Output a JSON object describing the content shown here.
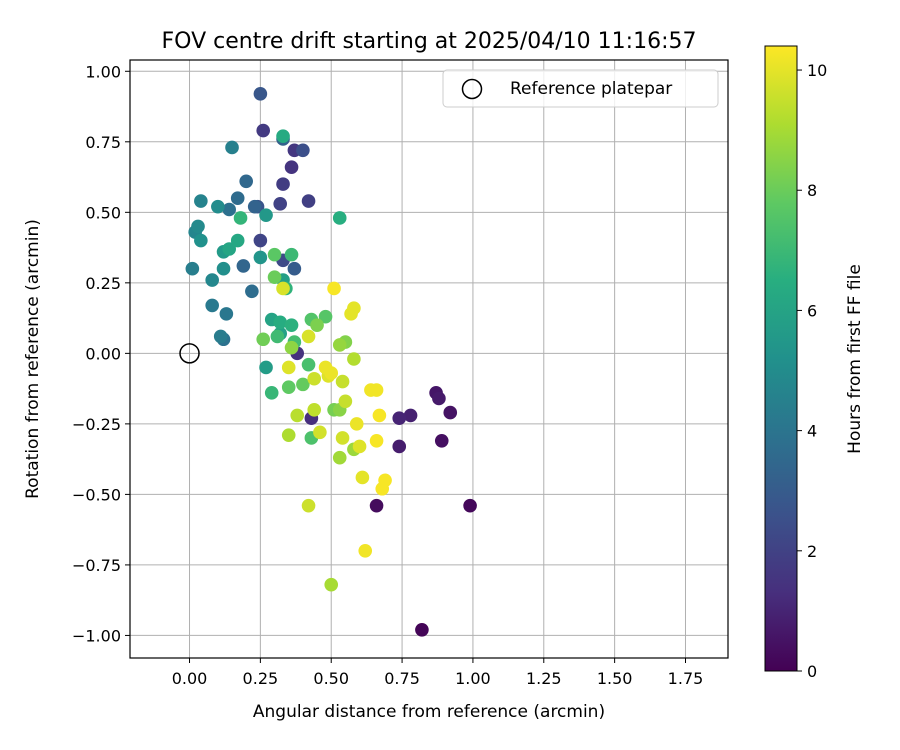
{
  "chart_data": {
    "type": "scatter",
    "title": "FOV centre drift starting at 2025/04/10 11:16:57",
    "xlabel": "Angular distance from reference (arcmin)",
    "ylabel": "Rotation from reference (arcmin)",
    "xlim": [
      -0.21,
      1.9
    ],
    "ylim": [
      -1.08,
      1.04
    ],
    "xticks": [
      "0.00",
      "0.25",
      "0.50",
      "0.75",
      "1.00",
      "1.25",
      "1.50",
      "1.75"
    ],
    "yticks": [
      "1.00",
      "0.75",
      "0.50",
      "0.25",
      "0.00",
      "−0.25",
      "−0.50",
      "−0.75",
      "−1.00"
    ],
    "grid": true,
    "legend": {
      "label": "Reference platepar",
      "placement": "top-right"
    },
    "reference_point": {
      "x": 0.0,
      "y": 0.0
    },
    "colorbar": {
      "label": "Hours from first FF file",
      "range": [
        0,
        10.4
      ],
      "ticks": [
        "0",
        "2",
        "4",
        "6",
        "8",
        "10"
      ],
      "colormap": "viridis"
    },
    "series": [
      {
        "points": [
          {
            "x": 0.82,
            "y": -0.98,
            "h": 0.1
          },
          {
            "x": 0.99,
            "y": -0.54,
            "h": 0.2
          },
          {
            "x": 0.66,
            "y": -0.54,
            "h": 0.3
          },
          {
            "x": 0.89,
            "y": -0.31,
            "h": 0.4
          },
          {
            "x": 0.92,
            "y": -0.21,
            "h": 0.5
          },
          {
            "x": 0.87,
            "y": -0.14,
            "h": 0.6
          },
          {
            "x": 0.88,
            "y": -0.16,
            "h": 0.7
          },
          {
            "x": 0.74,
            "y": -0.33,
            "h": 0.8
          },
          {
            "x": 0.78,
            "y": -0.22,
            "h": 0.9
          },
          {
            "x": 0.74,
            "y": -0.23,
            "h": 1.0
          },
          {
            "x": 0.43,
            "y": -0.23,
            "h": 1.3
          },
          {
            "x": 0.38,
            "y": 0.0,
            "h": 1.4
          },
          {
            "x": 0.36,
            "y": 0.66,
            "h": 1.5
          },
          {
            "x": 0.37,
            "y": 0.72,
            "h": 1.6
          },
          {
            "x": 0.26,
            "y": 0.79,
            "h": 1.7
          },
          {
            "x": 0.33,
            "y": 0.6,
            "h": 1.8
          },
          {
            "x": 0.42,
            "y": 0.54,
            "h": 1.9
          },
          {
            "x": 0.32,
            "y": 0.53,
            "h": 2.0
          },
          {
            "x": 0.25,
            "y": 0.4,
            "h": 2.1
          },
          {
            "x": 0.33,
            "y": 0.33,
            "h": 2.3
          },
          {
            "x": 0.4,
            "y": 0.72,
            "h": 2.5
          },
          {
            "x": 0.24,
            "y": 0.52,
            "h": 2.7
          },
          {
            "x": 0.25,
            "y": 0.92,
            "h": 2.8
          },
          {
            "x": 0.37,
            "y": 0.3,
            "h": 3.0
          },
          {
            "x": 0.33,
            "y": 0.76,
            "h": 3.2
          },
          {
            "x": 0.23,
            "y": 0.52,
            "h": 3.3
          },
          {
            "x": 0.19,
            "y": 0.31,
            "h": 3.4
          },
          {
            "x": 0.2,
            "y": 0.61,
            "h": 3.5
          },
          {
            "x": 0.17,
            "y": 0.55,
            "h": 3.6
          },
          {
            "x": 0.22,
            "y": 0.22,
            "h": 3.7
          },
          {
            "x": 0.14,
            "y": 0.51,
            "h": 3.8
          },
          {
            "x": 0.12,
            "y": 0.05,
            "h": 3.9
          },
          {
            "x": 0.13,
            "y": 0.14,
            "h": 4.1
          },
          {
            "x": 0.08,
            "y": 0.17,
            "h": 4.2
          },
          {
            "x": 0.11,
            "y": 0.06,
            "h": 4.3
          },
          {
            "x": 0.01,
            "y": 0.3,
            "h": 4.4
          },
          {
            "x": 0.15,
            "y": 0.73,
            "h": 4.5
          },
          {
            "x": 0.04,
            "y": 0.54,
            "h": 4.6
          },
          {
            "x": 0.02,
            "y": 0.43,
            "h": 4.7
          },
          {
            "x": 0.08,
            "y": 0.26,
            "h": 4.8
          },
          {
            "x": 0.03,
            "y": 0.45,
            "h": 4.9
          },
          {
            "x": 0.1,
            "y": 0.52,
            "h": 5.0
          },
          {
            "x": 0.12,
            "y": 0.3,
            "h": 5.1
          },
          {
            "x": 0.04,
            "y": 0.4,
            "h": 5.2
          },
          {
            "x": 0.25,
            "y": 0.34,
            "h": 5.4
          },
          {
            "x": 0.27,
            "y": 0.49,
            "h": 5.5
          },
          {
            "x": 0.12,
            "y": 0.36,
            "h": 5.6
          },
          {
            "x": 0.27,
            "y": -0.05,
            "h": 5.7
          },
          {
            "x": 0.33,
            "y": 0.26,
            "h": 5.8
          },
          {
            "x": 0.32,
            "y": 0.07,
            "h": 5.9
          },
          {
            "x": 0.29,
            "y": 0.12,
            "h": 6.0
          },
          {
            "x": 0.14,
            "y": 0.37,
            "h": 6.1
          },
          {
            "x": 0.17,
            "y": 0.4,
            "h": 6.2
          },
          {
            "x": 0.33,
            "y": 0.77,
            "h": 6.3
          },
          {
            "x": 0.32,
            "y": 0.11,
            "h": 6.4
          },
          {
            "x": 0.53,
            "y": 0.48,
            "h": 6.5
          },
          {
            "x": 0.36,
            "y": 0.1,
            "h": 6.6
          },
          {
            "x": 0.34,
            "y": 0.23,
            "h": 6.7
          },
          {
            "x": 0.18,
            "y": 0.48,
            "h": 6.8
          },
          {
            "x": 0.29,
            "y": -0.14,
            "h": 6.9
          },
          {
            "x": 0.36,
            "y": 0.35,
            "h": 7.0
          },
          {
            "x": 0.31,
            "y": 0.06,
            "h": 7.1
          },
          {
            "x": 0.37,
            "y": 0.04,
            "h": 7.2
          },
          {
            "x": 0.42,
            "y": -0.04,
            "h": 7.3
          },
          {
            "x": 0.43,
            "y": -0.3,
            "h": 7.4
          },
          {
            "x": 0.43,
            "y": 0.12,
            "h": 7.5
          },
          {
            "x": 0.48,
            "y": 0.13,
            "h": 7.6
          },
          {
            "x": 0.3,
            "y": 0.35,
            "h": 7.7
          },
          {
            "x": 0.35,
            "y": -0.12,
            "h": 7.8
          },
          {
            "x": 0.4,
            "y": -0.11,
            "h": 7.9
          },
          {
            "x": 0.3,
            "y": 0.27,
            "h": 8.0
          },
          {
            "x": 0.26,
            "y": 0.05,
            "h": 8.1
          },
          {
            "x": 0.51,
            "y": -0.2,
            "h": 8.2
          },
          {
            "x": 0.45,
            "y": 0.1,
            "h": 8.3
          },
          {
            "x": 0.55,
            "y": 0.04,
            "h": 8.4
          },
          {
            "x": 0.53,
            "y": -0.2,
            "h": 8.5
          },
          {
            "x": 0.36,
            "y": 0.02,
            "h": 8.6
          },
          {
            "x": 0.53,
            "y": 0.03,
            "h": 8.7
          },
          {
            "x": 0.58,
            "y": -0.34,
            "h": 8.8
          },
          {
            "x": 0.53,
            "y": -0.37,
            "h": 8.9
          },
          {
            "x": 0.5,
            "y": -0.82,
            "h": 9.0
          },
          {
            "x": 0.35,
            "y": -0.29,
            "h": 9.1
          },
          {
            "x": 0.58,
            "y": -0.02,
            "h": 9.2
          },
          {
            "x": 0.38,
            "y": -0.22,
            "h": 9.3
          },
          {
            "x": 0.44,
            "y": -0.2,
            "h": 9.4
          },
          {
            "x": 0.54,
            "y": -0.1,
            "h": 9.5
          },
          {
            "x": 0.55,
            "y": -0.17,
            "h": 9.5
          },
          {
            "x": 0.44,
            "y": -0.09,
            "h": 9.6
          },
          {
            "x": 0.42,
            "y": -0.54,
            "h": 9.6
          },
          {
            "x": 0.54,
            "y": -0.3,
            "h": 9.7
          },
          {
            "x": 0.46,
            "y": -0.28,
            "h": 9.7
          },
          {
            "x": 0.33,
            "y": 0.23,
            "h": 9.8
          },
          {
            "x": 0.42,
            "y": 0.06,
            "h": 9.8
          },
          {
            "x": 0.35,
            "y": -0.05,
            "h": 9.9
          },
          {
            "x": 0.49,
            "y": -0.08,
            "h": 9.9
          },
          {
            "x": 0.6,
            "y": -0.33,
            "h": 9.9
          },
          {
            "x": 0.61,
            "y": -0.44,
            "h": 10.0
          },
          {
            "x": 0.58,
            "y": 0.16,
            "h": 10.0
          },
          {
            "x": 0.57,
            "y": 0.14,
            "h": 10.0
          },
          {
            "x": 0.48,
            "y": -0.05,
            "h": 10.1
          },
          {
            "x": 0.5,
            "y": -0.07,
            "h": 10.1
          },
          {
            "x": 0.59,
            "y": -0.25,
            "h": 10.1
          },
          {
            "x": 0.62,
            "y": -0.7,
            "h": 10.2
          },
          {
            "x": 0.64,
            "y": -0.13,
            "h": 10.2
          },
          {
            "x": 0.66,
            "y": -0.13,
            "h": 10.2
          },
          {
            "x": 0.67,
            "y": -0.22,
            "h": 10.3
          },
          {
            "x": 0.66,
            "y": -0.31,
            "h": 10.3
          },
          {
            "x": 0.69,
            "y": -0.45,
            "h": 10.3
          },
          {
            "x": 0.68,
            "y": -0.48,
            "h": 10.3
          },
          {
            "x": 0.51,
            "y": 0.23,
            "h": 10.3
          }
        ]
      }
    ]
  }
}
